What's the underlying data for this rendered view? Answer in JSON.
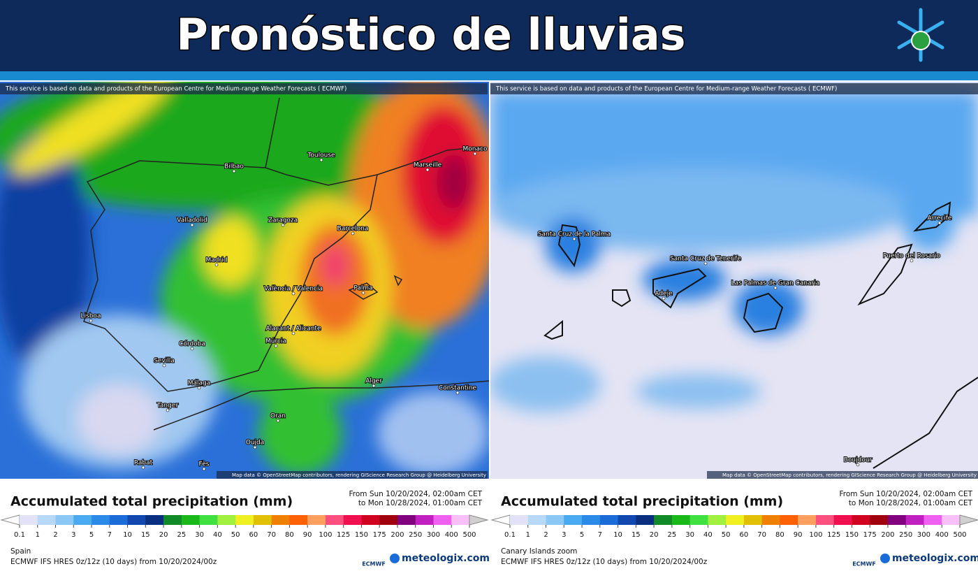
{
  "header": {
    "title": "Pronóstico de lluvias"
  },
  "panels": [
    {
      "notice": "This service is based on data and products of the European Centre for Medium-range Weather Forecasts ( ECMWF)",
      "attribution": "Map data © OpenStreetMap contributors, rendering GIScience Research Group @ Heidelberg University",
      "cities": [
        "Bilbao",
        "Toulouse",
        "Marseille",
        "Monaco",
        "Valladolid",
        "Zaragoza",
        "Barcelona",
        "Madrid",
        "València / Valencia",
        "Palma",
        "Lisboa",
        "Alacant / Alicante",
        "Múrcia",
        "Córdoba",
        "Sevilla",
        "Málaga",
        "Tanger",
        "Alger",
        "Constantine",
        "Oran",
        "Rabat",
        "Fès",
        "Oujda"
      ],
      "region": "Spain"
    },
    {
      "notice": "This service is based on data and products of the European Centre for Medium-range Weather Forecasts ( ECMWF)",
      "attribution": "Map data © OpenStreetMap contributors, rendering GIScience Research Group @ Heidelberg University",
      "cities": [
        "Santa Cruz de la Palma",
        "Santa Cruz de Tenerife",
        "Adeje",
        "Las Palmas de Gran Canaria",
        "Puerto del Rosario",
        "Arrecife",
        "Boujdour"
      ],
      "region": "Canary Islands zoom"
    }
  ],
  "legend": {
    "title": "Accumulated total precipitation (mm)",
    "period": [
      "From Sun 10/20/2024, 02:00am CET",
      "to Mon 10/28/2024, 01:00am CET"
    ],
    "scale": [
      0.1,
      1,
      2,
      3,
      5,
      7,
      10,
      15,
      20,
      25,
      30,
      40,
      50,
      60,
      70,
      80,
      90,
      100,
      125,
      150,
      175,
      200,
      250,
      300,
      400,
      500
    ],
    "colors": [
      "#e2e2f6",
      "#b8d8f8",
      "#8cc8f5",
      "#4aaaf0",
      "#2a8ae6",
      "#1a6cd8",
      "#1048b0",
      "#0a2e80",
      "#128a2a",
      "#1ab81a",
      "#40e040",
      "#a0f040",
      "#f0f020",
      "#e0c000",
      "#f08000",
      "#ff6000",
      "#ffa060",
      "#ff5080",
      "#f01050",
      "#d00020",
      "#a00010",
      "#800080",
      "#c020c0",
      "#f060f0",
      "#f8c0f8"
    ],
    "model": "ECMWF IFS HRES 0z/12z (10 days) from 10/20/2024/00z",
    "logos": [
      "ECMWF",
      "meteologix.com"
    ]
  }
}
